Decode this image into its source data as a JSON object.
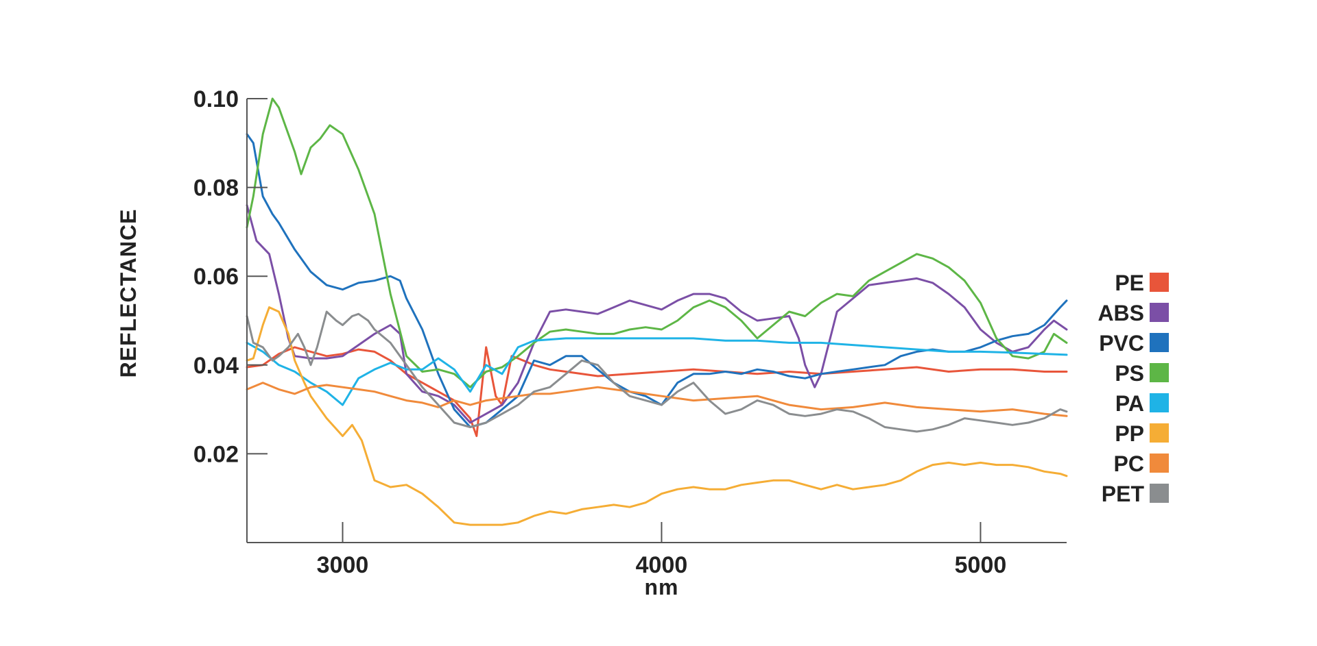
{
  "chart_data": {
    "type": "line",
    "title": "",
    "xlabel": "nm",
    "ylabel": "REFLECTANCE",
    "xlim": [
      2700,
      5270
    ],
    "ylim": [
      0.0,
      0.1
    ],
    "x_ticks": [
      3000,
      4000,
      5000
    ],
    "x_tick_labels": [
      "3000",
      "4000",
      "5000"
    ],
    "y_ticks": [
      0.02,
      0.04,
      0.06,
      0.08,
      0.1
    ],
    "y_tick_labels": [
      "0.02",
      "0.04",
      "0.06",
      "0.08",
      "0.10"
    ],
    "grid": false,
    "legend_position": "right",
    "series": [
      {
        "name": "PE",
        "color": "#e8553a",
        "x": [
          2700,
          2750,
          2800,
          2850,
          2900,
          2950,
          3000,
          3050,
          3100,
          3150,
          3200,
          3250,
          3300,
          3350,
          3400,
          3420,
          3450,
          3480,
          3500,
          3530,
          3550,
          3600,
          3650,
          3700,
          3800,
          3900,
          4000,
          4100,
          4200,
          4300,
          4400,
          4500,
          4600,
          4700,
          4800,
          4900,
          5000,
          5100,
          5200,
          5270
        ],
        "y": [
          0.0395,
          0.04,
          0.0425,
          0.044,
          0.043,
          0.042,
          0.0425,
          0.0435,
          0.043,
          0.041,
          0.038,
          0.036,
          0.034,
          0.032,
          0.028,
          0.024,
          0.044,
          0.033,
          0.031,
          0.042,
          0.0415,
          0.04,
          0.039,
          0.0385,
          0.0375,
          0.038,
          0.0385,
          0.039,
          0.0385,
          0.038,
          0.0385,
          0.038,
          0.0385,
          0.039,
          0.0395,
          0.0385,
          0.039,
          0.039,
          0.0385,
          0.0385
        ]
      },
      {
        "name": "ABS",
        "color": "#7b4fa6",
        "x": [
          2700,
          2730,
          2770,
          2800,
          2830,
          2850,
          2900,
          2950,
          3000,
          3050,
          3100,
          3150,
          3180,
          3200,
          3250,
          3300,
          3350,
          3400,
          3450,
          3500,
          3550,
          3600,
          3650,
          3700,
          3750,
          3800,
          3850,
          3900,
          3950,
          4000,
          4050,
          4100,
          4150,
          4200,
          4250,
          4300,
          4350,
          4400,
          4430,
          4450,
          4480,
          4500,
          4550,
          4600,
          4650,
          4700,
          4750,
          4800,
          4850,
          4900,
          4950,
          5000,
          5050,
          5100,
          5150,
          5200,
          5230,
          5270
        ],
        "y": [
          0.076,
          0.068,
          0.065,
          0.056,
          0.046,
          0.042,
          0.0415,
          0.0415,
          0.042,
          0.0445,
          0.047,
          0.049,
          0.047,
          0.038,
          0.034,
          0.033,
          0.031,
          0.027,
          0.029,
          0.031,
          0.036,
          0.045,
          0.052,
          0.0525,
          0.052,
          0.0515,
          0.053,
          0.0545,
          0.0535,
          0.0525,
          0.0545,
          0.056,
          0.056,
          0.055,
          0.052,
          0.05,
          0.0505,
          0.051,
          0.046,
          0.04,
          0.035,
          0.038,
          0.052,
          0.055,
          0.058,
          0.0585,
          0.059,
          0.0595,
          0.0585,
          0.056,
          0.053,
          0.048,
          0.045,
          0.043,
          0.044,
          0.048,
          0.05,
          0.048
        ]
      },
      {
        "name": "PVC",
        "color": "#1f72bd",
        "x": [
          2700,
          2720,
          2750,
          2780,
          2800,
          2850,
          2900,
          2950,
          3000,
          3050,
          3100,
          3150,
          3180,
          3200,
          3250,
          3300,
          3350,
          3400,
          3450,
          3500,
          3550,
          3600,
          3650,
          3700,
          3750,
          3800,
          3850,
          3900,
          3950,
          4000,
          4050,
          4100,
          4150,
          4200,
          4250,
          4300,
          4350,
          4400,
          4450,
          4500,
          4550,
          4600,
          4650,
          4700,
          4750,
          4800,
          4850,
          4900,
          4950,
          5000,
          5050,
          5100,
          5150,
          5200,
          5250,
          5270
        ],
        "y": [
          0.092,
          0.09,
          0.078,
          0.074,
          0.072,
          0.066,
          0.061,
          0.058,
          0.057,
          0.0585,
          0.059,
          0.06,
          0.059,
          0.055,
          0.048,
          0.038,
          0.03,
          0.026,
          0.027,
          0.03,
          0.033,
          0.041,
          0.04,
          0.042,
          0.042,
          0.039,
          0.036,
          0.034,
          0.033,
          0.031,
          0.036,
          0.038,
          0.038,
          0.0385,
          0.038,
          0.039,
          0.0385,
          0.0375,
          0.037,
          0.038,
          0.0385,
          0.039,
          0.0395,
          0.04,
          0.042,
          0.043,
          0.0435,
          0.043,
          0.043,
          0.044,
          0.0455,
          0.0465,
          0.047,
          0.049,
          0.053,
          0.0545
        ]
      },
      {
        "name": "PS",
        "color": "#5db646",
        "x": [
          2700,
          2720,
          2750,
          2780,
          2800,
          2850,
          2870,
          2900,
          2930,
          2960,
          3000,
          3050,
          3100,
          3150,
          3200,
          3250,
          3300,
          3350,
          3400,
          3450,
          3500,
          3550,
          3600,
          3650,
          3700,
          3750,
          3800,
          3850,
          3900,
          3950,
          4000,
          4050,
          4100,
          4150,
          4200,
          4250,
          4300,
          4350,
          4400,
          4450,
          4500,
          4550,
          4600,
          4650,
          4700,
          4750,
          4800,
          4850,
          4900,
          4950,
          5000,
          5050,
          5100,
          5150,
          5200,
          5230,
          5270
        ],
        "y": [
          0.071,
          0.078,
          0.092,
          0.1,
          0.098,
          0.088,
          0.083,
          0.089,
          0.091,
          0.094,
          0.092,
          0.084,
          0.074,
          0.056,
          0.042,
          0.0385,
          0.039,
          0.038,
          0.035,
          0.0385,
          0.0395,
          0.042,
          0.045,
          0.0475,
          0.048,
          0.0475,
          0.047,
          0.047,
          0.048,
          0.0485,
          0.048,
          0.05,
          0.053,
          0.0545,
          0.053,
          0.05,
          0.046,
          0.049,
          0.052,
          0.051,
          0.054,
          0.056,
          0.0555,
          0.059,
          0.061,
          0.063,
          0.065,
          0.064,
          0.062,
          0.059,
          0.054,
          0.046,
          0.042,
          0.0415,
          0.043,
          0.047,
          0.045
        ]
      },
      {
        "name": "PA",
        "color": "#1fb3e6",
        "x": [
          2700,
          2750,
          2800,
          2850,
          2900,
          2950,
          3000,
          3050,
          3100,
          3150,
          3200,
          3250,
          3300,
          3350,
          3400,
          3450,
          3500,
          3550,
          3600,
          3700,
          3800,
          3900,
          4000,
          4100,
          4200,
          4300,
          4400,
          4500,
          4600,
          4700,
          4800,
          4900,
          5000,
          5100,
          5200,
          5270
        ],
        "y": [
          0.045,
          0.043,
          0.04,
          0.0385,
          0.036,
          0.034,
          0.031,
          0.037,
          0.039,
          0.0405,
          0.039,
          0.039,
          0.0415,
          0.039,
          0.034,
          0.04,
          0.038,
          0.044,
          0.0455,
          0.046,
          0.046,
          0.046,
          0.046,
          0.046,
          0.0455,
          0.0455,
          0.045,
          0.045,
          0.0445,
          0.044,
          0.0435,
          0.043,
          0.043,
          0.0428,
          0.0425,
          0.0423
        ]
      },
      {
        "name": "PP",
        "color": "#f5ad35",
        "x": [
          2700,
          2720,
          2750,
          2770,
          2800,
          2830,
          2850,
          2880,
          2900,
          2950,
          3000,
          3030,
          3060,
          3100,
          3150,
          3200,
          3250,
          3300,
          3350,
          3400,
          3450,
          3500,
          3550,
          3600,
          3650,
          3700,
          3750,
          3800,
          3850,
          3900,
          3950,
          4000,
          4050,
          4100,
          4150,
          4200,
          4250,
          4300,
          4350,
          4400,
          4450,
          4500,
          4550,
          4600,
          4650,
          4700,
          4750,
          4800,
          4850,
          4900,
          4950,
          5000,
          5050,
          5100,
          5150,
          5200,
          5250,
          5270
        ],
        "y": [
          0.041,
          0.0415,
          0.049,
          0.053,
          0.052,
          0.047,
          0.041,
          0.036,
          0.033,
          0.028,
          0.024,
          0.0265,
          0.023,
          0.014,
          0.0125,
          0.013,
          0.011,
          0.008,
          0.0045,
          0.004,
          0.004,
          0.004,
          0.0045,
          0.006,
          0.007,
          0.0065,
          0.0075,
          0.008,
          0.0085,
          0.008,
          0.009,
          0.011,
          0.012,
          0.0125,
          0.012,
          0.012,
          0.013,
          0.0135,
          0.014,
          0.014,
          0.013,
          0.012,
          0.013,
          0.012,
          0.0125,
          0.013,
          0.014,
          0.016,
          0.0175,
          0.018,
          0.0175,
          0.018,
          0.0175,
          0.0175,
          0.017,
          0.016,
          0.0155,
          0.015
        ]
      },
      {
        "name": "PC",
        "color": "#f08a3b",
        "x": [
          2700,
          2750,
          2800,
          2850,
          2900,
          2950,
          3000,
          3050,
          3100,
          3150,
          3200,
          3250,
          3300,
          3350,
          3400,
          3450,
          3500,
          3550,
          3600,
          3650,
          3700,
          3750,
          3800,
          3850,
          3900,
          3950,
          4000,
          4100,
          4200,
          4300,
          4400,
          4500,
          4600,
          4700,
          4800,
          4900,
          5000,
          5100,
          5200,
          5270
        ],
        "y": [
          0.0345,
          0.036,
          0.0345,
          0.0335,
          0.035,
          0.0355,
          0.035,
          0.0345,
          0.034,
          0.033,
          0.032,
          0.0315,
          0.0305,
          0.032,
          0.031,
          0.032,
          0.0325,
          0.033,
          0.0335,
          0.0335,
          0.034,
          0.0345,
          0.035,
          0.0345,
          0.034,
          0.0335,
          0.033,
          0.032,
          0.0325,
          0.033,
          0.031,
          0.03,
          0.0305,
          0.0315,
          0.0305,
          0.03,
          0.0295,
          0.03,
          0.029,
          0.0285
        ]
      },
      {
        "name": "PET",
        "color": "#8a8d8f",
        "x": [
          2700,
          2720,
          2750,
          2780,
          2800,
          2830,
          2860,
          2880,
          2900,
          2920,
          2950,
          2980,
          3000,
          3030,
          3050,
          3080,
          3100,
          3150,
          3200,
          3250,
          3300,
          3350,
          3400,
          3450,
          3500,
          3550,
          3600,
          3650,
          3700,
          3750,
          3800,
          3850,
          3900,
          3950,
          4000,
          4050,
          4100,
          4150,
          4200,
          4250,
          4300,
          4350,
          4400,
          4450,
          4500,
          4550,
          4600,
          4650,
          4700,
          4750,
          4800,
          4850,
          4900,
          4950,
          5000,
          5050,
          5100,
          5150,
          5200,
          5250,
          5270
        ],
        "y": [
          0.051,
          0.045,
          0.044,
          0.041,
          0.042,
          0.044,
          0.047,
          0.044,
          0.04,
          0.044,
          0.052,
          0.05,
          0.049,
          0.051,
          0.0515,
          0.05,
          0.048,
          0.045,
          0.04,
          0.035,
          0.031,
          0.027,
          0.026,
          0.027,
          0.029,
          0.031,
          0.034,
          0.035,
          0.038,
          0.041,
          0.04,
          0.036,
          0.033,
          0.032,
          0.031,
          0.034,
          0.036,
          0.032,
          0.029,
          0.03,
          0.032,
          0.031,
          0.029,
          0.0285,
          0.029,
          0.03,
          0.0295,
          0.028,
          0.026,
          0.0255,
          0.025,
          0.0255,
          0.0265,
          0.028,
          0.0275,
          0.027,
          0.0265,
          0.027,
          0.028,
          0.03,
          0.0295
        ]
      }
    ]
  }
}
